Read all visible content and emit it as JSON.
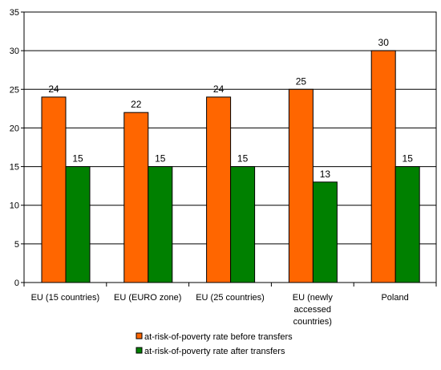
{
  "chart_data": {
    "type": "bar",
    "categories": [
      "EU (15 countries)",
      "EU (EURO zone)",
      "EU (25 countries)",
      "EU (newly accessed countries)",
      "Poland"
    ],
    "category_label_lines": [
      [
        "EU (15 countries)"
      ],
      [
        "EU (EURO zone)"
      ],
      [
        "EU (25 countries)"
      ],
      [
        "EU (newly",
        "accessed",
        "countries)"
      ],
      [
        "Poland"
      ]
    ],
    "series": [
      {
        "name": "at-risk-of-poverty rate before transfers",
        "values": [
          24,
          22,
          24,
          25,
          30
        ],
        "color": "#ff6600"
      },
      {
        "name": "at-risk-of-poverty rate after transfers",
        "values": [
          15,
          15,
          15,
          13,
          15
        ],
        "color": "#008000"
      }
    ],
    "ylim": [
      0,
      35
    ],
    "yticks": [
      0,
      5,
      10,
      15,
      20,
      25,
      30,
      35
    ],
    "grid": true,
    "legend_position": "bottom",
    "data_labels": true
  }
}
